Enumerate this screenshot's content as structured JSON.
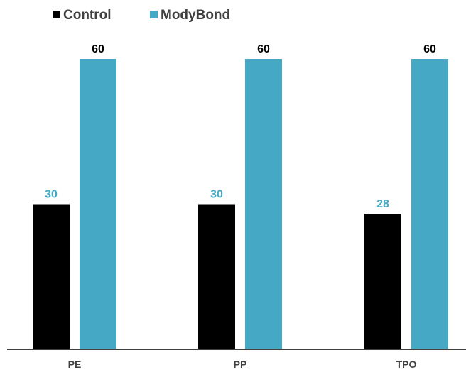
{
  "chart_data": {
    "type": "bar",
    "title": "",
    "xlabel": "",
    "ylabel": "",
    "ylim": [
      0,
      60
    ],
    "categories": [
      "PE",
      "PP",
      "TPO"
    ],
    "series": [
      {
        "name": "Control",
        "values": [
          30,
          30,
          28
        ],
        "color": "#000000",
        "label_color": "#45a8c4"
      },
      {
        "name": "ModyBond",
        "values": [
          60,
          60,
          60
        ],
        "color": "#45a8c4",
        "label_color": "#000000"
      }
    ],
    "legend": "top-left",
    "grid": false,
    "axis_line_color": "#000000"
  }
}
